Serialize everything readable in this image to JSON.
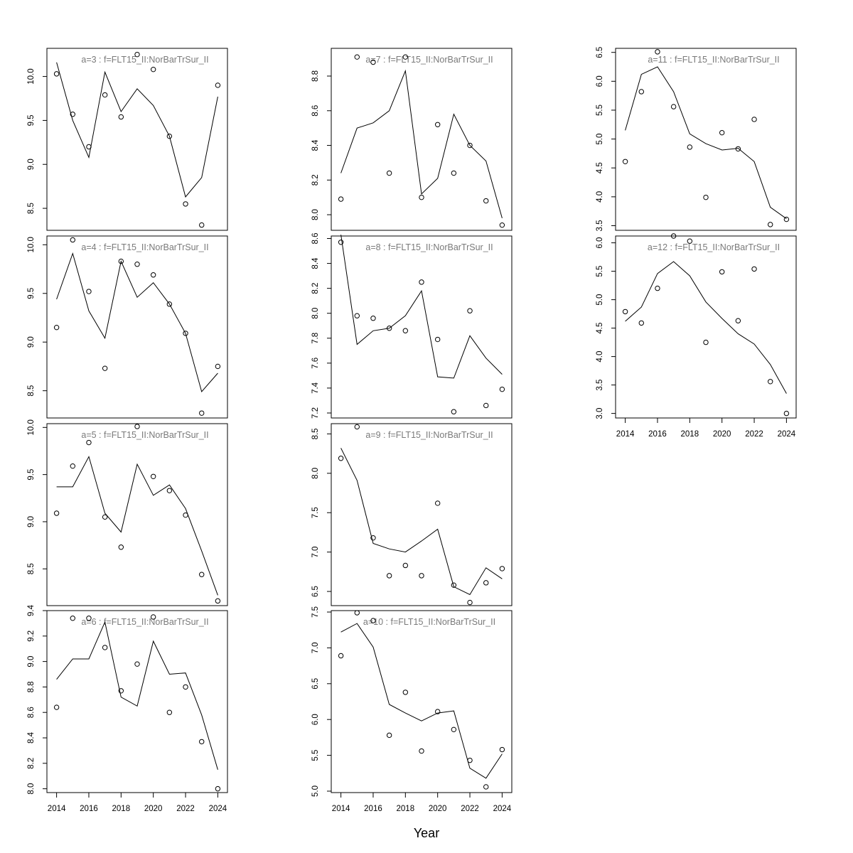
{
  "xlabel": "Year",
  "chart_data": [
    {
      "type": "scatter+line",
      "title": "a=3 : f=FLT15_II:NorBarTrSur_II",
      "x": [
        2014,
        2015,
        2016,
        2017,
        2018,
        2019,
        2020,
        2021,
        2022,
        2023,
        2024
      ],
      "observed": [
        10.03,
        9.57,
        9.2,
        9.79,
        9.54,
        10.25,
        10.08,
        9.32,
        8.55,
        8.31,
        9.9
      ],
      "fitted": [
        10.16,
        9.5,
        9.08,
        10.05,
        9.6,
        9.86,
        9.67,
        9.32,
        8.63,
        8.85,
        9.77
      ],
      "yticks": [
        8.5,
        9.0,
        9.5,
        10.0
      ],
      "ylim": [
        8.25,
        10.32
      ],
      "show_xaxis": false
    },
    {
      "type": "scatter+line",
      "title": "a=4 : f=FLT15_II:NorBarTrSur_II",
      "x": [
        2014,
        2015,
        2016,
        2017,
        2018,
        2019,
        2020,
        2021,
        2022,
        2023,
        2024
      ],
      "observed": [
        9.15,
        10.05,
        9.52,
        8.73,
        9.83,
        9.8,
        9.69,
        9.39,
        9.09,
        8.27,
        8.75
      ],
      "fitted": [
        9.44,
        9.91,
        9.32,
        9.04,
        9.83,
        9.46,
        9.61,
        9.39,
        9.09,
        8.49,
        8.68
      ],
      "yticks": [
        8.5,
        9.0,
        9.5,
        10.0
      ],
      "ylim": [
        8.22,
        10.09
      ],
      "show_xaxis": false
    },
    {
      "type": "scatter+line",
      "title": "a=5 : f=FLT15_II:NorBarTrSur_II",
      "x": [
        2014,
        2015,
        2016,
        2017,
        2018,
        2019,
        2020,
        2021,
        2022,
        2023,
        2024
      ],
      "observed": [
        9.09,
        9.59,
        9.84,
        9.05,
        8.73,
        10.01,
        9.48,
        9.33,
        9.07,
        8.44,
        8.16
      ],
      "fitted": [
        9.37,
        9.37,
        9.69,
        9.09,
        8.89,
        9.61,
        9.28,
        9.39,
        9.14,
        8.69,
        8.22
      ],
      "yticks": [
        8.5,
        9.0,
        9.5,
        10.0
      ],
      "ylim": [
        8.11,
        10.04
      ],
      "show_xaxis": false
    },
    {
      "type": "scatter+line",
      "title": "a=6 : f=FLT15_II:NorBarTrSur_II",
      "x": [
        2014,
        2015,
        2016,
        2017,
        2018,
        2019,
        2020,
        2021,
        2022,
        2023,
        2024
      ],
      "observed": [
        8.64,
        9.34,
        9.34,
        9.11,
        8.77,
        8.98,
        9.35,
        8.6,
        8.8,
        8.37,
        8.0
      ],
      "fitted": [
        8.86,
        9.02,
        9.02,
        9.31,
        8.72,
        8.65,
        9.16,
        8.9,
        8.91,
        8.58,
        8.15
      ],
      "yticks": [
        8.0,
        8.2,
        8.4,
        8.6,
        8.8,
        9.0,
        9.2,
        9.4
      ],
      "ylim": [
        7.97,
        9.4
      ],
      "show_xaxis": true
    },
    {
      "type": "scatter+line",
      "title": "a=7 : f=FLT15_II:NorBarTrSur_II",
      "x": [
        2014,
        2015,
        2016,
        2017,
        2018,
        2019,
        2020,
        2021,
        2022,
        2023,
        2024
      ],
      "observed": [
        8.09,
        8.91,
        8.88,
        8.24,
        8.91,
        8.1,
        8.52,
        8.24,
        8.4,
        8.08,
        7.94
      ],
      "fitted": [
        8.24,
        8.5,
        8.53,
        8.6,
        8.83,
        8.12,
        8.21,
        8.58,
        8.4,
        8.31,
        7.98
      ],
      "yticks": [
        8.0,
        8.2,
        8.4,
        8.6,
        8.8
      ],
      "ylim": [
        7.91,
        8.96
      ],
      "show_xaxis": false
    },
    {
      "type": "scatter+line",
      "title": "a=8 : f=FLT15_II:NorBarTrSur_II",
      "x": [
        2014,
        2015,
        2016,
        2017,
        2018,
        2019,
        2020,
        2021,
        2022,
        2023,
        2024
      ],
      "observed": [
        8.57,
        7.98,
        7.96,
        7.88,
        7.86,
        8.25,
        7.79,
        7.21,
        8.02,
        7.26,
        7.39
      ],
      "fitted": [
        8.63,
        7.75,
        7.86,
        7.88,
        7.98,
        8.18,
        7.49,
        7.48,
        7.82,
        7.64,
        7.51
      ],
      "yticks": [
        7.2,
        7.4,
        7.6,
        7.8,
        8.0,
        8.2,
        8.4,
        8.6
      ],
      "ylim": [
        7.16,
        8.62
      ],
      "show_xaxis": false
    },
    {
      "type": "scatter+line",
      "title": "a=9 : f=FLT15_II:NorBarTrSur_II",
      "x": [
        2014,
        2015,
        2016,
        2017,
        2018,
        2019,
        2020,
        2021,
        2022,
        2023,
        2024
      ],
      "observed": [
        8.19,
        8.59,
        7.18,
        6.7,
        6.83,
        6.7,
        7.62,
        6.58,
        6.36,
        6.61,
        6.79
      ],
      "fitted": [
        8.32,
        7.91,
        7.11,
        7.04,
        7.0,
        7.14,
        7.29,
        6.56,
        6.46,
        6.8,
        6.66
      ],
      "yticks": [
        6.5,
        7.0,
        7.5,
        8.0,
        8.5
      ],
      "ylim": [
        6.32,
        8.63
      ],
      "show_xaxis": false
    },
    {
      "type": "scatter+line",
      "title": "a=10 : f=FLT15_II:NorBarTrSur_II",
      "x": [
        2014,
        2015,
        2016,
        2017,
        2018,
        2019,
        2020,
        2021,
        2022,
        2023,
        2024
      ],
      "observed": [
        6.89,
        7.49,
        7.38,
        5.78,
        6.38,
        5.56,
        6.11,
        5.86,
        5.43,
        5.06,
        5.58
      ],
      "fitted": [
        7.22,
        7.34,
        7.01,
        6.21,
        6.09,
        5.98,
        6.09,
        6.12,
        5.32,
        5.18,
        5.52
      ],
      "yticks": [
        5.0,
        5.5,
        6.0,
        6.5,
        7.0,
        7.5
      ],
      "ylim": [
        4.98,
        7.52
      ],
      "show_xaxis": true
    },
    {
      "type": "scatter+line",
      "title": "a=11 : f=FLT15_II:NorBarTrSur_II",
      "x": [
        2014,
        2015,
        2016,
        2017,
        2018,
        2019,
        2020,
        2021,
        2022,
        2023,
        2024
      ],
      "observed": [
        4.61,
        5.82,
        6.51,
        5.56,
        4.86,
        3.99,
        5.11,
        4.83,
        5.34,
        3.52,
        3.61
      ],
      "fitted": [
        5.15,
        6.12,
        6.25,
        5.82,
        5.09,
        4.92,
        4.81,
        4.84,
        4.61,
        3.82,
        3.62
      ],
      "yticks": [
        3.5,
        4.0,
        4.5,
        5.0,
        5.5,
        6.0,
        6.5
      ],
      "ylim": [
        3.42,
        6.57
      ],
      "show_xaxis": false
    },
    {
      "type": "scatter+line",
      "title": "a=12 : f=FLT15_II:NorBarTrSur_II",
      "x": [
        2014,
        2015,
        2016,
        2017,
        2018,
        2019,
        2020,
        2021,
        2022,
        2023,
        2024
      ],
      "observed": [
        4.79,
        4.59,
        5.2,
        6.12,
        6.03,
        4.25,
        5.49,
        4.63,
        5.54,
        3.56,
        3.0
      ],
      "fitted": [
        4.62,
        4.87,
        5.46,
        5.67,
        5.42,
        4.96,
        4.67,
        4.4,
        4.22,
        3.86,
        3.35
      ],
      "yticks": [
        3.0,
        3.5,
        4.0,
        4.5,
        5.0,
        5.5,
        6.0
      ],
      "ylim": [
        2.92,
        6.12
      ],
      "show_xaxis": true
    }
  ]
}
